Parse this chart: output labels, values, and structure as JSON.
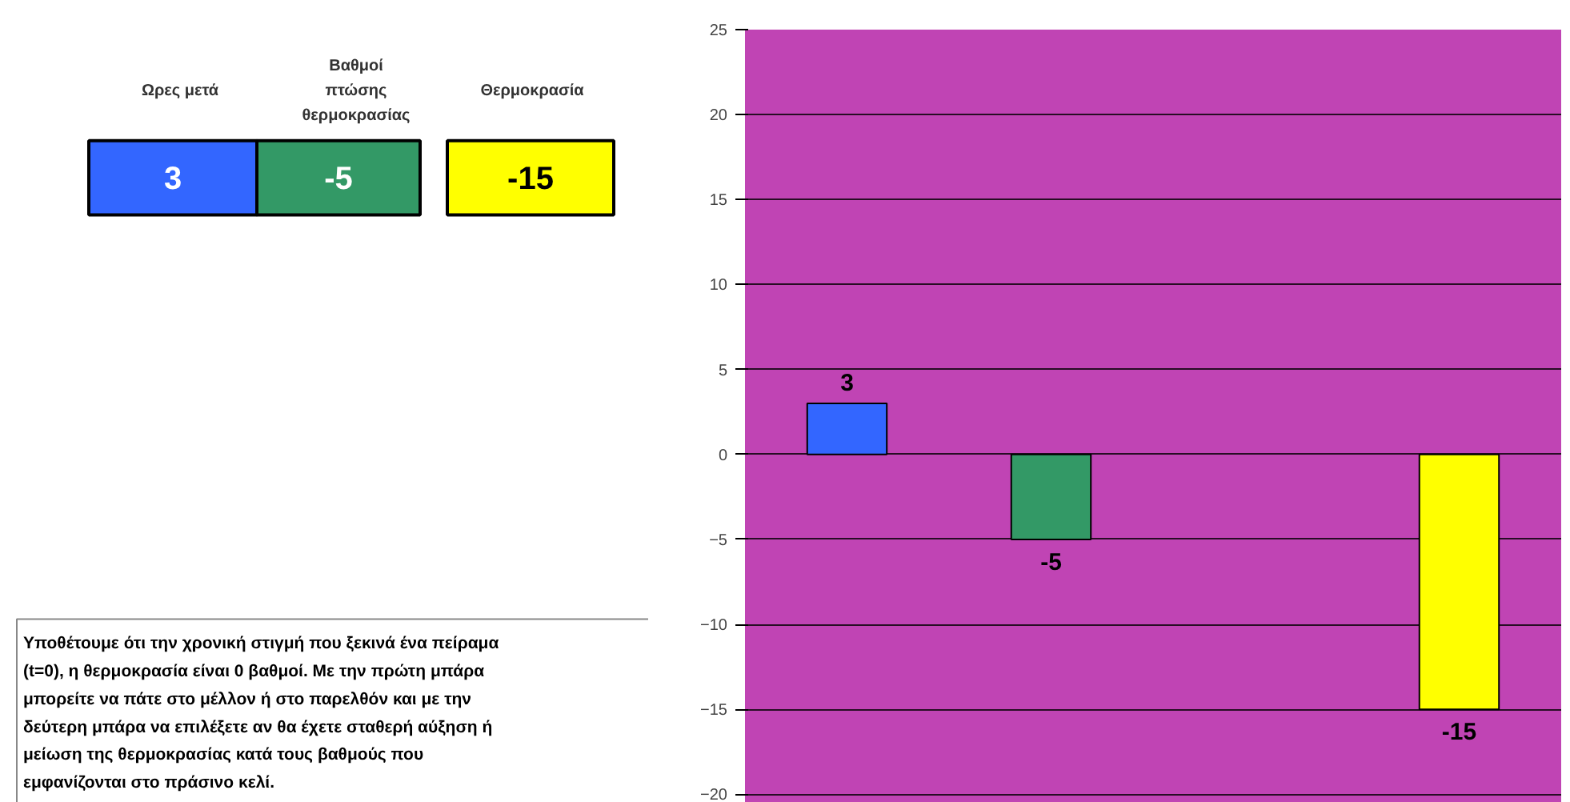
{
  "chart_data": [
    {
      "type": "other",
      "annotations": [
        "Ωρες μετά",
        "Βαθμοί πτώσης θερμοκρασίας",
        "Θερμοκρασία",
        "3",
        "-5",
        "-15",
        "Υποθέτουμε ότι την χρονική στιγμή που ξεκινά ένα πείραμα (t=0), η θερμοκρασία είναι 0 βαθμοί. Με την πρώτη μπάρα μπορείτε να πάτε στο μέλλον ή στο παρελθόν και με την δεύτερη μπάρα να επιλέξετε αν θα έχετε σταθερή αύξηση ή μείωση της θερμοκρασίας κατά τους βαθμούς που εμφανίζονται στο πράσινο κελί."
      ]
    },
    {
      "type": "bar",
      "categories": [
        null,
        null,
        null,
        null
      ],
      "values": [
        3,
        -5,
        null,
        -15
      ],
      "colors": [
        "#3366ff",
        "#339966",
        "#ffffff",
        "#ffff00"
      ],
      "ylim": [
        -20.5,
        25
      ],
      "yticks": [
        -20,
        -15,
        -10,
        -5,
        0,
        5,
        10,
        15,
        20,
        25
      ],
      "grid": "y",
      "tick_labels": "y",
      "data_labels": true
    }
  ]
}
